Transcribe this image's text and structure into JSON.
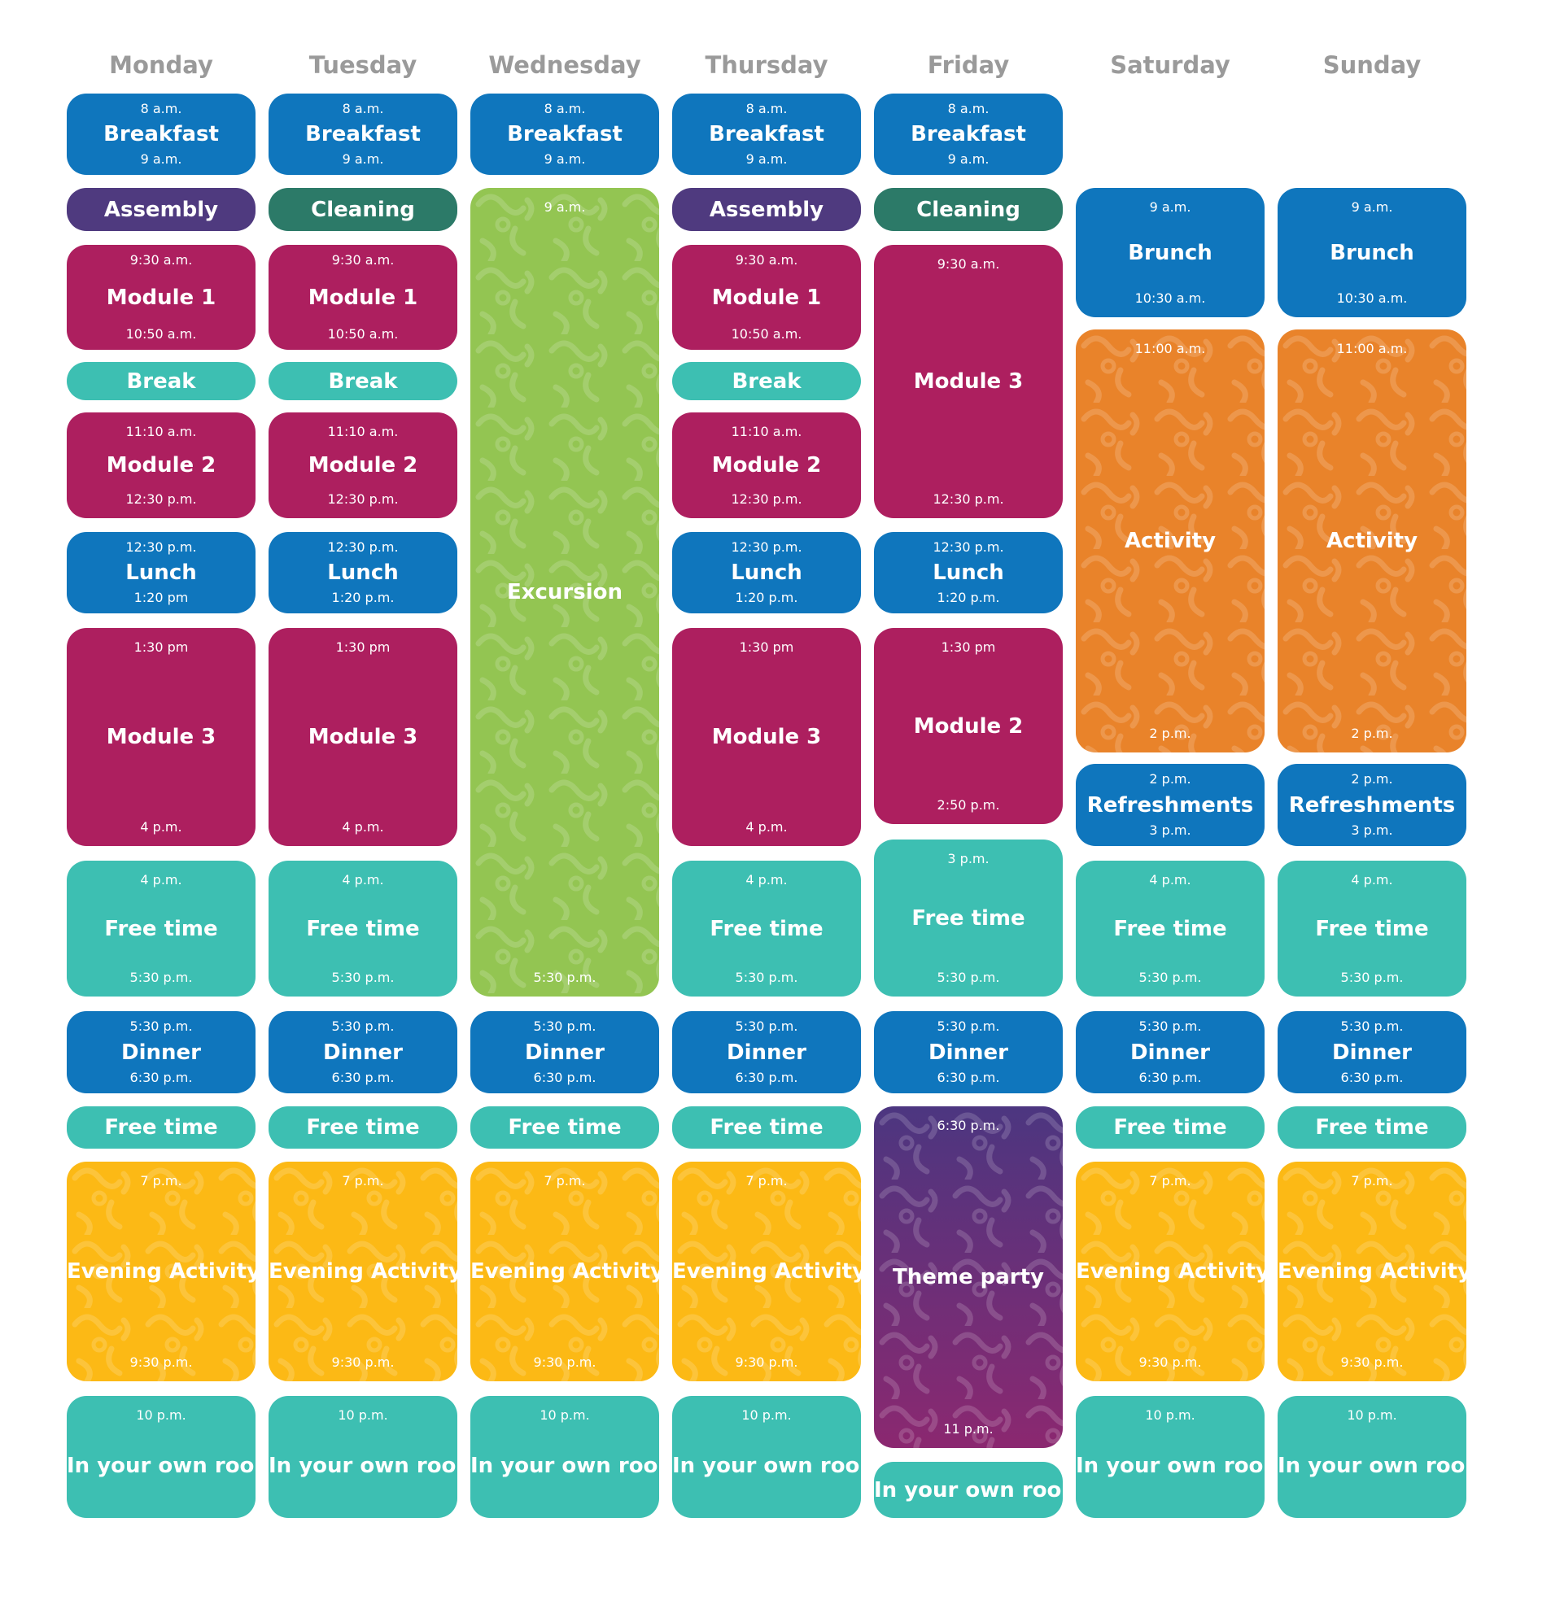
{
  "colors": {
    "blue": "#0f76bd",
    "purple": "#4f3a7f",
    "green_dark": "#2c7a68",
    "magenta": "#ad1f5f",
    "teal": "#3dbfb2",
    "lime": "#93c552",
    "orange": "#e9832a",
    "yellow": "#fcb915",
    "party_top": "#4c3680",
    "party_bottom": "#8b2870",
    "header_text": "#9a9a9a"
  },
  "days": [
    {
      "name": "Monday",
      "events": [
        {
          "title": "Breakfast",
          "start": "8 a.m.",
          "end": "9 a.m.",
          "color": "blue"
        },
        {
          "title": "Assembly",
          "color": "purple"
        },
        {
          "title": "Module 1",
          "start": "9:30 a.m.",
          "end": "10:50 a.m.",
          "color": "magenta"
        },
        {
          "title": "Break",
          "color": "teal"
        },
        {
          "title": "Module 2",
          "start": "11:10 a.m.",
          "end": "12:30 p.m.",
          "color": "magenta"
        },
        {
          "title": "Lunch",
          "start": "12:30 p.m.",
          "end": "1:20 pm",
          "color": "blue"
        },
        {
          "title": "Module 3",
          "start": "1:30 pm",
          "end": "4 p.m.",
          "color": "magenta"
        },
        {
          "title": "Free time",
          "start": "4 p.m.",
          "end": "5:30 p.m.",
          "color": "teal"
        },
        {
          "title": "Dinner",
          "start": "5:30 p.m.",
          "end": "6:30 p.m.",
          "color": "blue"
        },
        {
          "title": "Free time",
          "color": "teal"
        },
        {
          "title": "Evening Activity",
          "start": "7 p.m.",
          "end": "9:30 p.m.",
          "color": "yellow",
          "pattern": true
        },
        {
          "title": "In your own room",
          "start": "10 p.m.",
          "color": "teal"
        }
      ]
    },
    {
      "name": "Tuesday",
      "events": [
        {
          "title": "Breakfast",
          "start": "8 a.m.",
          "end": "9 a.m.",
          "color": "blue"
        },
        {
          "title": "Cleaning",
          "color": "green_dark"
        },
        {
          "title": "Module 1",
          "start": "9:30 a.m.",
          "end": "10:50 a.m.",
          "color": "magenta"
        },
        {
          "title": "Break",
          "color": "teal"
        },
        {
          "title": "Module 2",
          "start": "11:10 a.m.",
          "end": "12:30 p.m.",
          "color": "magenta"
        },
        {
          "title": "Lunch",
          "start": "12:30 p.m.",
          "end": "1:20 p.m.",
          "color": "blue"
        },
        {
          "title": "Module 3",
          "start": "1:30 pm",
          "end": "4 p.m.",
          "color": "magenta"
        },
        {
          "title": "Free time",
          "start": "4 p.m.",
          "end": "5:30 p.m.",
          "color": "teal"
        },
        {
          "title": "Dinner",
          "start": "5:30 p.m.",
          "end": "6:30 p.m.",
          "color": "blue"
        },
        {
          "title": "Free time",
          "color": "teal"
        },
        {
          "title": "Evening Activity",
          "start": "7 p.m.",
          "end": "9:30 p.m.",
          "color": "yellow",
          "pattern": true
        },
        {
          "title": "In your own room",
          "start": "10 p.m.",
          "color": "teal"
        }
      ]
    },
    {
      "name": "Wednesday",
      "events": [
        {
          "title": "Breakfast",
          "start": "8 a.m.",
          "end": "9 a.m.",
          "color": "blue"
        },
        {
          "title": "Excursion",
          "start": "9 a.m.",
          "end": "5:30 p.m.",
          "color": "lime",
          "pattern": true
        },
        {
          "title": "Dinner",
          "start": "5:30 p.m.",
          "end": "6:30 p.m.",
          "color": "blue"
        },
        {
          "title": "Free time",
          "color": "teal"
        },
        {
          "title": "Evening Activity",
          "start": "7 p.m.",
          "end": "9:30 p.m.",
          "color": "yellow",
          "pattern": true
        },
        {
          "title": "In your own room",
          "start": "10 p.m.",
          "color": "teal"
        }
      ]
    },
    {
      "name": "Thursday",
      "events": [
        {
          "title": "Breakfast",
          "start": "8 a.m.",
          "end": "9 a.m.",
          "color": "blue"
        },
        {
          "title": "Assembly",
          "color": "purple"
        },
        {
          "title": "Module 1",
          "start": "9:30 a.m.",
          "end": "10:50 a.m.",
          "color": "magenta"
        },
        {
          "title": "Break",
          "color": "teal"
        },
        {
          "title": "Module 2",
          "start": "11:10 a.m.",
          "end": "12:30 p.m.",
          "color": "magenta"
        },
        {
          "title": "Lunch",
          "start": "12:30 p.m.",
          "end": "1:20 p.m.",
          "color": "blue"
        },
        {
          "title": "Module 3",
          "start": "1:30 pm",
          "end": "4 p.m.",
          "color": "magenta"
        },
        {
          "title": "Free time",
          "start": "4 p.m.",
          "end": "5:30 p.m.",
          "color": "teal"
        },
        {
          "title": "Dinner",
          "start": "5:30 p.m.",
          "end": "6:30 p.m.",
          "color": "blue"
        },
        {
          "title": "Free time",
          "color": "teal"
        },
        {
          "title": "Evening Activity",
          "start": "7 p.m.",
          "end": "9:30 p.m.",
          "color": "yellow",
          "pattern": true
        },
        {
          "title": "In your own room",
          "start": "10 p.m.",
          "color": "teal"
        }
      ]
    },
    {
      "name": "Friday",
      "events": [
        {
          "title": "Breakfast",
          "start": "8 a.m.",
          "end": "9 a.m.",
          "color": "blue"
        },
        {
          "title": "Cleaning",
          "color": "green_dark"
        },
        {
          "title": "Module 3",
          "start": "9:30 a.m.",
          "end": "12:30 p.m.",
          "color": "magenta"
        },
        {
          "title": "Lunch",
          "start": "12:30 p.m.",
          "end": "1:20 p.m.",
          "color": "blue"
        },
        {
          "title": "Module 2",
          "start": "1:30 pm",
          "end": "2:50 p.m.",
          "color": "magenta"
        },
        {
          "title": "Free time",
          "start": "3 p.m.",
          "end": "5:30 p.m.",
          "color": "teal"
        },
        {
          "title": "Dinner",
          "start": "5:30 p.m.",
          "end": "6:30 p.m.",
          "color": "blue"
        },
        {
          "title": "Theme party",
          "start": "6:30 p.m.",
          "end": "11 p.m.",
          "color": "party",
          "pattern": true
        },
        {
          "title": "In your own room",
          "color": "teal"
        }
      ]
    },
    {
      "name": "Saturday",
      "events": [
        {
          "title": "Brunch",
          "start": "9 a.m.",
          "end": "10:30 a.m.",
          "color": "blue"
        },
        {
          "title": "Activity",
          "start": "11:00 a.m.",
          "end": "2 p.m.",
          "color": "orange",
          "pattern": true
        },
        {
          "title": "Refreshments",
          "start": "2 p.m.",
          "end": "3 p.m.",
          "color": "blue"
        },
        {
          "title": "Free time",
          "start": "4 p.m.",
          "end": "5:30 p.m.",
          "color": "teal"
        },
        {
          "title": "Dinner",
          "start": "5:30 p.m.",
          "end": "6:30 p.m.",
          "color": "blue"
        },
        {
          "title": "Free time",
          "color": "teal"
        },
        {
          "title": "Evening Activity",
          "start": "7 p.m.",
          "end": "9:30 p.m.",
          "color": "yellow",
          "pattern": true
        },
        {
          "title": "In your own room",
          "start": "10 p.m.",
          "color": "teal"
        }
      ]
    },
    {
      "name": "Sunday",
      "events": [
        {
          "title": "Brunch",
          "start": "9 a.m.",
          "end": "10:30 a.m.",
          "color": "blue"
        },
        {
          "title": "Activity",
          "start": "11:00 a.m.",
          "end": "2 p.m.",
          "color": "orange",
          "pattern": true
        },
        {
          "title": "Refreshments",
          "start": "2 p.m.",
          "end": "3 p.m.",
          "color": "blue"
        },
        {
          "title": "Free time",
          "start": "4 p.m.",
          "end": "5:30 p.m.",
          "color": "teal"
        },
        {
          "title": "Dinner",
          "start": "5:30 p.m.",
          "end": "6:30 p.m.",
          "color": "blue"
        },
        {
          "title": "Free time",
          "color": "teal"
        },
        {
          "title": "Evening Activity",
          "start": "7 p.m.",
          "end": "9:30 p.m.",
          "color": "yellow",
          "pattern": true
        },
        {
          "title": "In your own room",
          "start": "10 p.m.",
          "color": "teal"
        }
      ]
    }
  ]
}
